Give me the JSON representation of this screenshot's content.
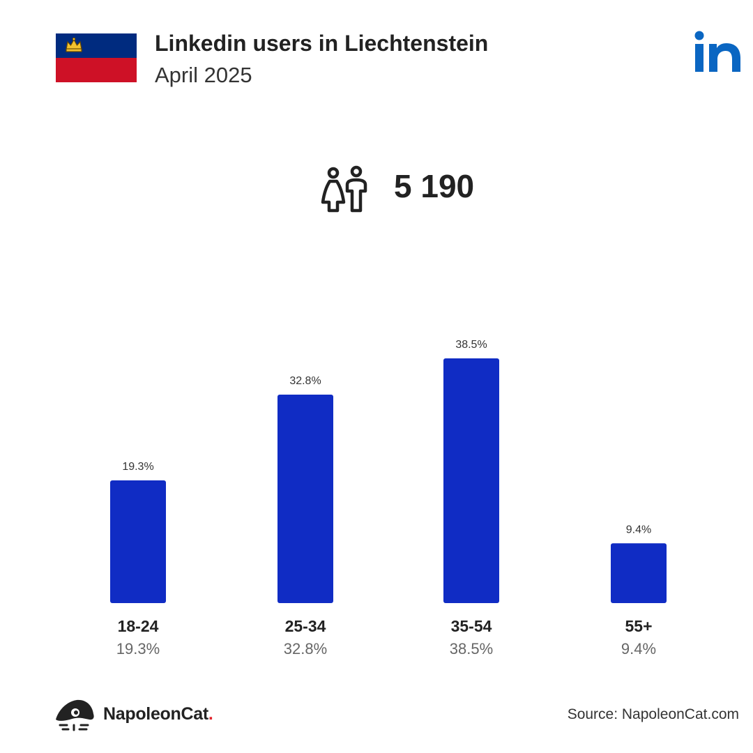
{
  "header": {
    "title": "Linkedin users in Liechtenstein",
    "subtitle": "April 2025",
    "flag_icon": "liechtenstein-flag-icon",
    "platform_icon": "linkedin-logo-icon"
  },
  "summary": {
    "icon": "users-icon",
    "total": "5 190"
  },
  "chart_data": {
    "type": "bar",
    "categories": [
      "18-24",
      "25-34",
      "35-54",
      "55+"
    ],
    "values": [
      19.3,
      32.8,
      38.5,
      9.4
    ],
    "value_labels": [
      "19.3%",
      "32.8%",
      "38.5%",
      "9.4%"
    ],
    "unit": "%",
    "title": "",
    "xlabel": "",
    "ylabel": "",
    "ylim": [
      0,
      38.5
    ],
    "grid": false,
    "bar_color": "#102CC4"
  },
  "footer": {
    "brand_name": "NapoleonCat",
    "brand_dot": ".",
    "source": "Source: NapoleonCat.com"
  },
  "colors": {
    "accent": "#102CC4",
    "linkedin_blue": "#0A66C2",
    "flag_blue": "#002B7F",
    "flag_red": "#CE1126",
    "brand_dot": "#E3262E"
  }
}
